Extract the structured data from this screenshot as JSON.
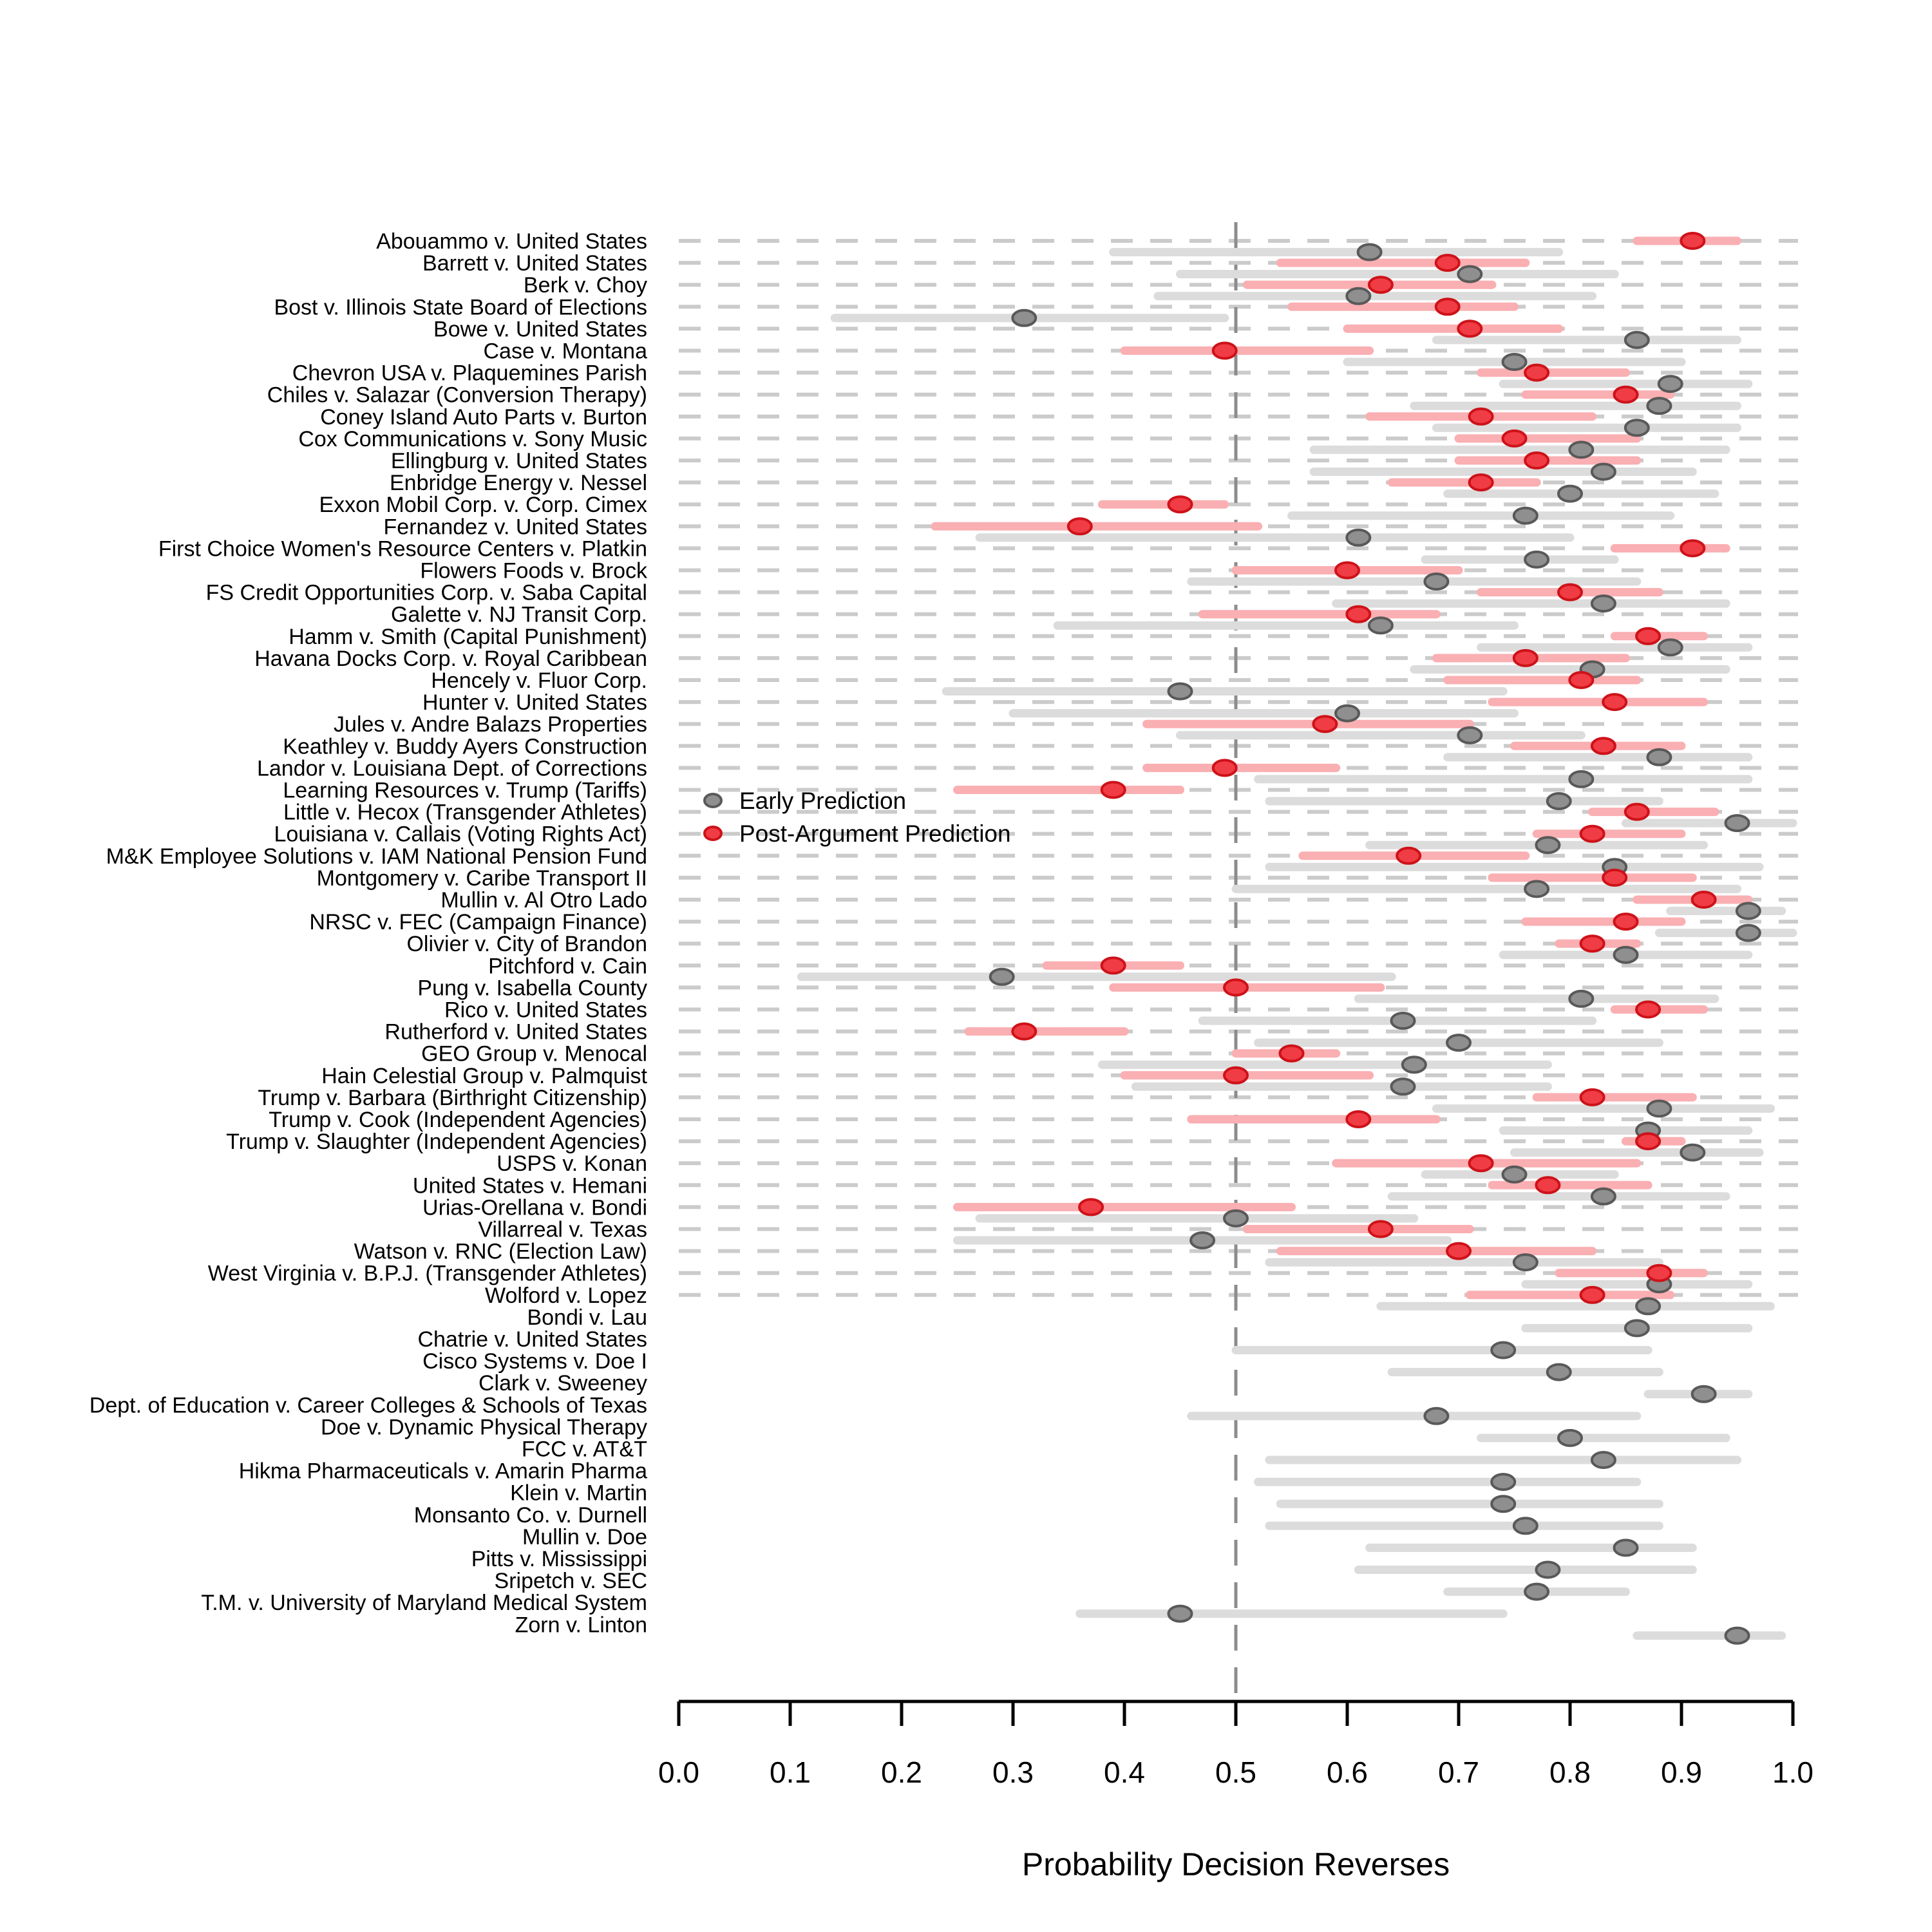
{
  "chart_data": {
    "type": "scatter",
    "subtype": "dot-interval-forest-plot",
    "xlabel": "Probability Decision Reverses",
    "xlim": [
      0.0,
      1.0
    ],
    "x_ticks": [
      "0.0",
      "0.1",
      "0.2",
      "0.3",
      "0.4",
      "0.5",
      "0.6",
      "0.7",
      "0.8",
      "0.9",
      "1.0"
    ],
    "x_tick_values": [
      0.0,
      0.1,
      0.2,
      0.3,
      0.4,
      0.5,
      0.6,
      0.7,
      0.8,
      0.9,
      1.0
    ],
    "reference_line_x": 0.5,
    "grid": "dashed-horizontal-per-case",
    "legend_position": "inside-left-middle",
    "legend": {
      "early_label": "Early Prediction",
      "post_label": "Post-Argument Prediction"
    },
    "colors": {
      "early_dot_fill": "#8F8F8F",
      "early_dot_stroke": "#595959",
      "early_bar": "#DCDCDC",
      "post_dot_fill": "#F03C45",
      "post_dot_stroke": "#CE1219",
      "post_bar": "#FAAFB2",
      "row_dash": "#CBCBCB",
      "reference_line": "#8C8C8C",
      "axis": "#000000"
    },
    "series_note": "early = Early Prediction (gray), post = Post-Argument Prediction (red); values are [estimate, ci_low, ci_high]",
    "rows": [
      {
        "label": "Abouammo v. United States",
        "post": [
          0.91,
          0.86,
          0.95
        ],
        "early": [
          0.62,
          0.39,
          0.79
        ]
      },
      {
        "label": "Barrett v. United States",
        "post": [
          0.69,
          0.54,
          0.76
        ],
        "early": [
          0.71,
          0.45,
          0.84
        ]
      },
      {
        "label": "Berk v. Choy",
        "post": [
          0.63,
          0.51,
          0.73
        ],
        "early": [
          0.61,
          0.43,
          0.82
        ]
      },
      {
        "label": "Bost v. Illinois State Board of Elections",
        "post": [
          0.69,
          0.55,
          0.75
        ],
        "early": [
          0.31,
          0.14,
          0.49
        ]
      },
      {
        "label": "Bowe v. United States",
        "post": [
          0.71,
          0.6,
          0.79
        ],
        "early": [
          0.86,
          0.68,
          0.95
        ]
      },
      {
        "label": "Case v. Montana",
        "post": [
          0.49,
          0.4,
          0.62
        ],
        "early": [
          0.75,
          0.6,
          0.9
        ]
      },
      {
        "label": "Chevron USA v. Plaquemines Parish",
        "post": [
          0.77,
          0.72,
          0.85
        ],
        "early": [
          0.89,
          0.74,
          0.96
        ]
      },
      {
        "label": "Chiles v. Salazar (Conversion Therapy)",
        "post": [
          0.85,
          0.76,
          0.89
        ],
        "early": [
          0.88,
          0.66,
          0.95
        ]
      },
      {
        "label": "Coney Island Auto Parts v. Burton",
        "post": [
          0.72,
          0.62,
          0.82
        ],
        "early": [
          0.86,
          0.68,
          0.95
        ]
      },
      {
        "label": "Cox Communications v. Sony Music",
        "post": [
          0.75,
          0.7,
          0.86
        ],
        "early": [
          0.81,
          0.57,
          0.94
        ]
      },
      {
        "label": "Ellingburg v. United States",
        "post": [
          0.77,
          0.7,
          0.86
        ],
        "early": [
          0.83,
          0.57,
          0.91
        ]
      },
      {
        "label": "Enbridge Energy v. Nessel",
        "post": [
          0.72,
          0.64,
          0.77
        ],
        "early": [
          0.8,
          0.69,
          0.93
        ]
      },
      {
        "label": "Exxon Mobil Corp. v. Corp. Cimex",
        "post": [
          0.45,
          0.38,
          0.49
        ],
        "early": [
          0.76,
          0.55,
          0.89
        ]
      },
      {
        "label": "Fernandez v. United States",
        "post": [
          0.36,
          0.23,
          0.52
        ],
        "early": [
          0.61,
          0.27,
          0.8
        ]
      },
      {
        "label": "First Choice Women's Resource Centers v. Platkin",
        "post": [
          0.91,
          0.84,
          0.94
        ],
        "early": [
          0.77,
          0.67,
          0.84
        ]
      },
      {
        "label": "Flowers Foods v. Brock",
        "post": [
          0.6,
          0.5,
          0.7
        ],
        "early": [
          0.68,
          0.46,
          0.86
        ]
      },
      {
        "label": "FS Credit Opportunities Corp. v. Saba Capital",
        "post": [
          0.8,
          0.72,
          0.88
        ],
        "early": [
          0.83,
          0.59,
          0.94
        ]
      },
      {
        "label": "Galette v. NJ Transit Corp.",
        "post": [
          0.61,
          0.47,
          0.68
        ],
        "early": [
          0.63,
          0.34,
          0.75
        ]
      },
      {
        "label": "Hamm v. Smith (Capital Punishment)",
        "post": [
          0.87,
          0.84,
          0.92
        ],
        "early": [
          0.89,
          0.72,
          0.96
        ]
      },
      {
        "label": "Havana Docks Corp. v. Royal Caribbean",
        "post": [
          0.76,
          0.68,
          0.85
        ],
        "early": [
          0.82,
          0.66,
          0.94
        ]
      },
      {
        "label": "Hencely v. Fluor Corp.",
        "post": [
          0.81,
          0.69,
          0.86
        ],
        "early": [
          0.45,
          0.24,
          0.74
        ]
      },
      {
        "label": "Hunter v. United States",
        "post": [
          0.84,
          0.73,
          0.92
        ],
        "early": [
          0.6,
          0.3,
          0.75
        ]
      },
      {
        "label": "Jules v. Andre Balazs Properties",
        "post": [
          0.58,
          0.42,
          0.71
        ],
        "early": [
          0.71,
          0.45,
          0.81
        ]
      },
      {
        "label": "Keathley v. Buddy Ayers Construction",
        "post": [
          0.83,
          0.75,
          0.9
        ],
        "early": [
          0.88,
          0.69,
          0.96
        ]
      },
      {
        "label": "Landor v. Louisiana Dept. of Corrections",
        "post": [
          0.49,
          0.42,
          0.59
        ],
        "early": [
          0.81,
          0.52,
          0.96
        ]
      },
      {
        "label": "Learning Resources v. Trump (Tariffs)",
        "post": [
          0.39,
          0.25,
          0.45
        ],
        "early": [
          0.79,
          0.53,
          0.88
        ]
      },
      {
        "label": "Little v. Hecox (Transgender Athletes)",
        "post": [
          0.86,
          0.82,
          0.93
        ],
        "early": [
          0.95,
          0.85,
          1.0
        ]
      },
      {
        "label": "Louisiana v. Callais (Voting Rights Act)",
        "post": [
          0.82,
          0.77,
          0.9
        ],
        "early": [
          0.78,
          0.62,
          0.92
        ]
      },
      {
        "label": "M&K Employee Solutions v. IAM National Pension Fund",
        "post": [
          0.655,
          0.56,
          0.76
        ],
        "early": [
          0.84,
          0.53,
          0.97
        ]
      },
      {
        "label": "Montgomery v. Caribe Transport II",
        "post": [
          0.84,
          0.73,
          0.91
        ],
        "early": [
          0.77,
          0.5,
          0.95
        ]
      },
      {
        "label": "Mullin v. Al Otro Lado",
        "post": [
          0.92,
          0.86,
          0.96
        ],
        "early": [
          0.96,
          0.89,
          0.99
        ]
      },
      {
        "label": "NRSC v. FEC (Campaign Finance)",
        "post": [
          0.85,
          0.76,
          0.9
        ],
        "early": [
          0.96,
          0.88,
          1.0
        ]
      },
      {
        "label": "Olivier v. City of Brandon",
        "post": [
          0.82,
          0.79,
          0.86
        ],
        "early": [
          0.85,
          0.74,
          0.96
        ]
      },
      {
        "label": "Pitchford v. Cain",
        "post": [
          0.39,
          0.33,
          0.45
        ],
        "early": [
          0.29,
          0.11,
          0.64
        ]
      },
      {
        "label": "Pung v. Isabella County",
        "post": [
          0.5,
          0.39,
          0.63
        ],
        "early": [
          0.81,
          0.61,
          0.93
        ]
      },
      {
        "label": "Rico v. United States",
        "post": [
          0.87,
          0.84,
          0.92
        ],
        "early": [
          0.65,
          0.47,
          0.82
        ]
      },
      {
        "label": "Rutherford v. United States",
        "post": [
          0.31,
          0.26,
          0.4
        ],
        "early": [
          0.7,
          0.52,
          0.88
        ]
      },
      {
        "label": "GEO Group v. Menocal",
        "post": [
          0.55,
          0.5,
          0.59
        ],
        "early": [
          0.66,
          0.38,
          0.78
        ]
      },
      {
        "label": "Hain Celestial Group v. Palmquist",
        "post": [
          0.5,
          0.4,
          0.62
        ],
        "early": [
          0.65,
          0.41,
          0.78
        ]
      },
      {
        "label": "Trump v. Barbara (Birthright Citizenship)",
        "post": [
          0.82,
          0.77,
          0.91
        ],
        "early": [
          0.88,
          0.68,
          0.98
        ]
      },
      {
        "label": "Trump v. Cook (Independent Agencies)",
        "post": [
          0.61,
          0.46,
          0.68
        ],
        "early": [
          0.87,
          0.74,
          0.96
        ]
      },
      {
        "label": "Trump v. Slaughter (Independent Agencies)",
        "post": [
          0.87,
          0.85,
          0.9
        ],
        "early": [
          0.91,
          0.75,
          0.97
        ]
      },
      {
        "label": "USPS v. Konan",
        "post": [
          0.72,
          0.59,
          0.86
        ],
        "early": [
          0.75,
          0.67,
          0.84
        ]
      },
      {
        "label": "United States v. Hemani",
        "post": [
          0.78,
          0.73,
          0.87
        ],
        "early": [
          0.83,
          0.64,
          0.94
        ]
      },
      {
        "label": "Urias-Orellana v. Bondi",
        "post": [
          0.37,
          0.25,
          0.55
        ],
        "early": [
          0.5,
          0.27,
          0.66
        ]
      },
      {
        "label": "Villarreal v. Texas",
        "post": [
          0.63,
          0.51,
          0.71
        ],
        "early": [
          0.47,
          0.25,
          0.69
        ]
      },
      {
        "label": "Watson v. RNC (Election Law)",
        "post": [
          0.7,
          0.54,
          0.82
        ],
        "early": [
          0.76,
          0.53,
          0.88
        ]
      },
      {
        "label": "West Virginia v. B.P.J. (Transgender Athletes)",
        "post": [
          0.88,
          0.79,
          0.92
        ],
        "early": [
          0.88,
          0.76,
          0.96
        ]
      },
      {
        "label": "Wolford v. Lopez",
        "post": [
          0.82,
          0.71,
          0.89
        ],
        "early": [
          0.87,
          0.63,
          0.98
        ]
      },
      {
        "label": "Bondi v. Lau",
        "post": null,
        "early": [
          0.86,
          0.76,
          0.96
        ]
      },
      {
        "label": "Chatrie v. United States",
        "post": null,
        "early": [
          0.74,
          0.5,
          0.87
        ]
      },
      {
        "label": "Cisco Systems v. Doe I",
        "post": null,
        "early": [
          0.79,
          0.64,
          0.88
        ]
      },
      {
        "label": "Clark v. Sweeney",
        "post": null,
        "early": [
          0.92,
          0.87,
          0.96
        ]
      },
      {
        "label": "Dept. of Education v. Career Colleges & Schools of Texas",
        "post": null,
        "early": [
          0.68,
          0.46,
          0.86
        ]
      },
      {
        "label": "Doe v. Dynamic Physical Therapy",
        "post": null,
        "early": [
          0.8,
          0.72,
          0.94
        ]
      },
      {
        "label": "FCC v. AT&T",
        "post": null,
        "early": [
          0.83,
          0.53,
          0.95
        ]
      },
      {
        "label": "Hikma Pharmaceuticals v. Amarin Pharma",
        "post": null,
        "early": [
          0.74,
          0.52,
          0.86
        ]
      },
      {
        "label": "Klein v. Martin",
        "post": null,
        "early": [
          0.74,
          0.54,
          0.88
        ]
      },
      {
        "label": "Monsanto Co. v. Durnell",
        "post": null,
        "early": [
          0.76,
          0.53,
          0.88
        ]
      },
      {
        "label": "Mullin v. Doe",
        "post": null,
        "early": [
          0.85,
          0.62,
          0.91
        ]
      },
      {
        "label": "Pitts v. Mississippi",
        "post": null,
        "early": [
          0.78,
          0.61,
          0.91
        ]
      },
      {
        "label": "Sripetch v. SEC",
        "post": null,
        "early": [
          0.77,
          0.69,
          0.85
        ]
      },
      {
        "label": "T.M. v. University of Maryland Medical System",
        "post": null,
        "early": [
          0.45,
          0.36,
          0.74
        ]
      },
      {
        "label": "Zorn v. Linton",
        "post": null,
        "early": [
          0.95,
          0.86,
          0.99
        ]
      }
    ]
  }
}
